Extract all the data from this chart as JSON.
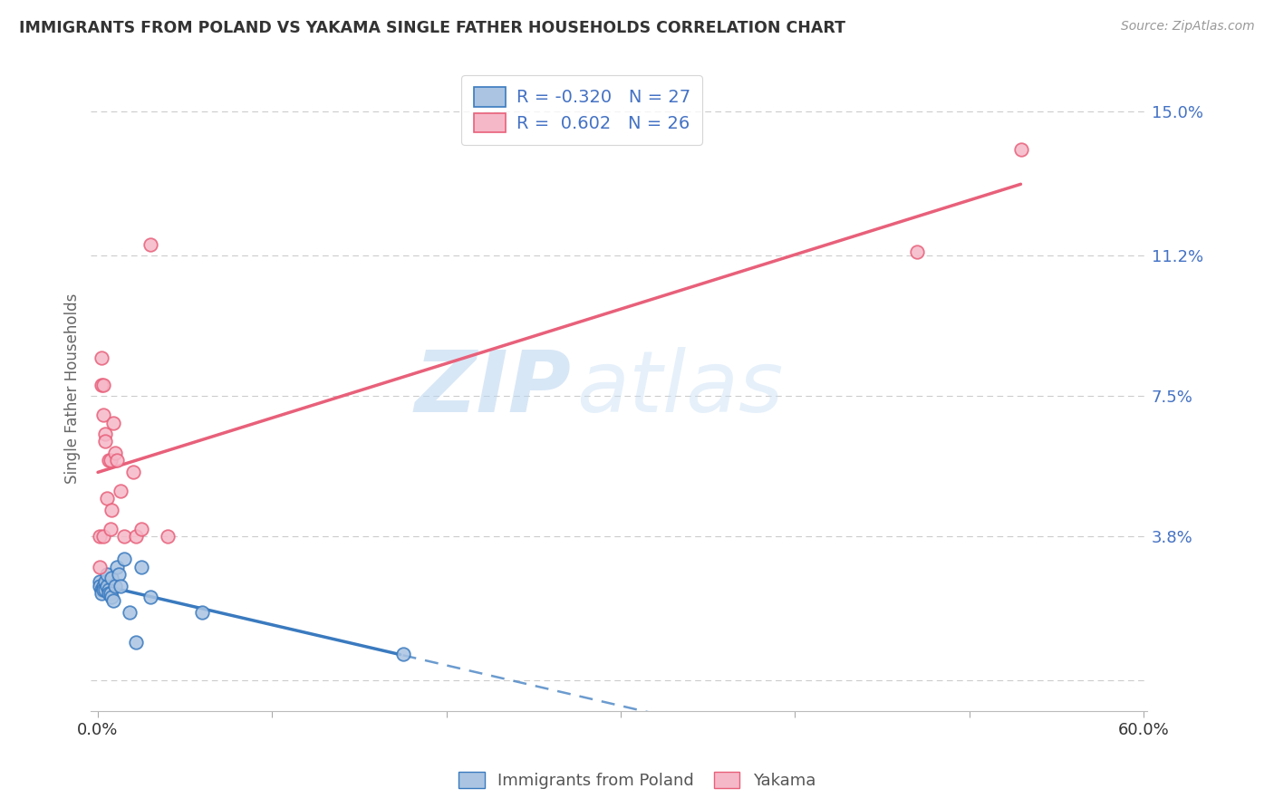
{
  "title": "IMMIGRANTS FROM POLAND VS YAKAMA SINGLE FATHER HOUSEHOLDS CORRELATION CHART",
  "source": "Source: ZipAtlas.com",
  "ylabel": "Single Father Households",
  "legend_bottom": [
    "Immigrants from Poland",
    "Yakama"
  ],
  "r_poland": -0.32,
  "n_poland": 27,
  "r_yakama": 0.602,
  "n_yakama": 26,
  "xlim": [
    -0.004,
    0.602
  ],
  "ylim": [
    -0.008,
    0.162
  ],
  "ytick_values": [
    0.0,
    0.038,
    0.075,
    0.112,
    0.15
  ],
  "ytick_labels": [
    "",
    "3.8%",
    "7.5%",
    "11.2%",
    "15.0%"
  ],
  "color_poland": "#aac4e2",
  "color_yakama": "#f5b8c8",
  "line_color_poland": "#3a7abf",
  "line_color_yakama": "#e8607a",
  "watermark_zip": "ZIP",
  "watermark_atlas": "atlas",
  "poland_x": [
    0.001,
    0.001,
    0.002,
    0.002,
    0.003,
    0.003,
    0.004,
    0.004,
    0.005,
    0.005,
    0.006,
    0.006,
    0.007,
    0.008,
    0.008,
    0.009,
    0.01,
    0.011,
    0.012,
    0.013,
    0.015,
    0.018,
    0.022,
    0.025,
    0.03,
    0.06,
    0.175
  ],
  "poland_y": [
    0.026,
    0.025,
    0.024,
    0.023,
    0.025,
    0.024,
    0.026,
    0.024,
    0.025,
    0.028,
    0.024,
    0.023,
    0.023,
    0.027,
    0.022,
    0.021,
    0.025,
    0.03,
    0.028,
    0.025,
    0.032,
    0.018,
    0.01,
    0.03,
    0.022,
    0.018,
    0.007
  ],
  "yakama_x": [
    0.001,
    0.001,
    0.002,
    0.002,
    0.003,
    0.003,
    0.003,
    0.004,
    0.004,
    0.005,
    0.006,
    0.007,
    0.007,
    0.008,
    0.009,
    0.01,
    0.011,
    0.013,
    0.015,
    0.02,
    0.022,
    0.025,
    0.03,
    0.04,
    0.47,
    0.53
  ],
  "yakama_y": [
    0.03,
    0.038,
    0.085,
    0.078,
    0.078,
    0.07,
    0.038,
    0.065,
    0.063,
    0.048,
    0.058,
    0.04,
    0.058,
    0.045,
    0.068,
    0.06,
    0.058,
    0.05,
    0.038,
    0.055,
    0.038,
    0.04,
    0.115,
    0.038,
    0.113,
    0.14
  ],
  "bg_color": "#ffffff",
  "grid_color": "#cccccc",
  "title_color": "#333333",
  "axis_label_color": "#666666",
  "ytick_color": "#4472c4",
  "legend_color": "#4472c4"
}
